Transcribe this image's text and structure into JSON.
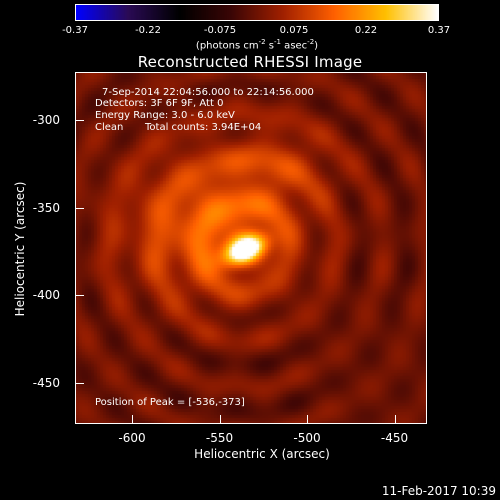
{
  "colorbar": {
    "tick_labels": [
      "-0.37",
      "-0.22",
      "-0.075",
      "0.075",
      "0.22",
      "0.37"
    ],
    "tick_values": [
      -0.37,
      -0.22,
      -0.075,
      0.075,
      0.22,
      0.37
    ],
    "unit_label_parts": [
      "(photons cm",
      "-2",
      " s",
      "-1",
      " asec",
      "-2",
      ")"
    ],
    "colors": [
      "#0000ff",
      "#2a0a55",
      "#000000",
      "#3a0505",
      "#a02000",
      "#ff6000",
      "#ffc000",
      "#ffffff"
    ]
  },
  "title": "Reconstructed RHESSI Image",
  "info": {
    "line1": "7-Sep-2014 22:04:56.000 to 22:14:56.000",
    "line2": "Detectors: 3F 6F 9F, Att 0",
    "line3": "Energy Range: 3.0 - 6.0 keV",
    "line4_left": "Clean",
    "line4_right": "Total counts: 3.94E+04",
    "peak": "Position of Peak = [-536,-373]"
  },
  "footer_date": "11-Feb-2017 10:39",
  "chart_data": {
    "type": "heatmap",
    "title": "Reconstructed RHESSI Image",
    "xlabel": "Heliocentric X (arcsec)",
    "ylabel": "Heliocentric Y (arcsec)",
    "xlim": [
      -632,
      -432
    ],
    "ylim": [
      -473,
      -273
    ],
    "x_ticks": [
      -600,
      -550,
      -500,
      -450
    ],
    "x_tick_labels": [
      "-600",
      "-550",
      "-500",
      "-450"
    ],
    "y_ticks": [
      -300,
      -350,
      -400,
      -450
    ],
    "y_tick_labels": [
      "-300",
      "-350",
      "-400",
      "-450"
    ],
    "value_range": [
      -0.37,
      0.37
    ],
    "peak_position": [
      -536,
      -373
    ],
    "sources": [
      {
        "x": -536,
        "y": -373,
        "amplitude": 0.37,
        "sigma_x": 9,
        "sigma_y": 5,
        "angle_deg": 25
      },
      {
        "x": -555,
        "y": -360,
        "amplitude": 0.16,
        "sigma_x": 35,
        "sigma_y": 30,
        "angle_deg": 0
      },
      {
        "x": -515,
        "y": -325,
        "amplitude": 0.06,
        "sigma_x": 22,
        "sigma_y": 18,
        "angle_deg": 0
      }
    ]
  }
}
